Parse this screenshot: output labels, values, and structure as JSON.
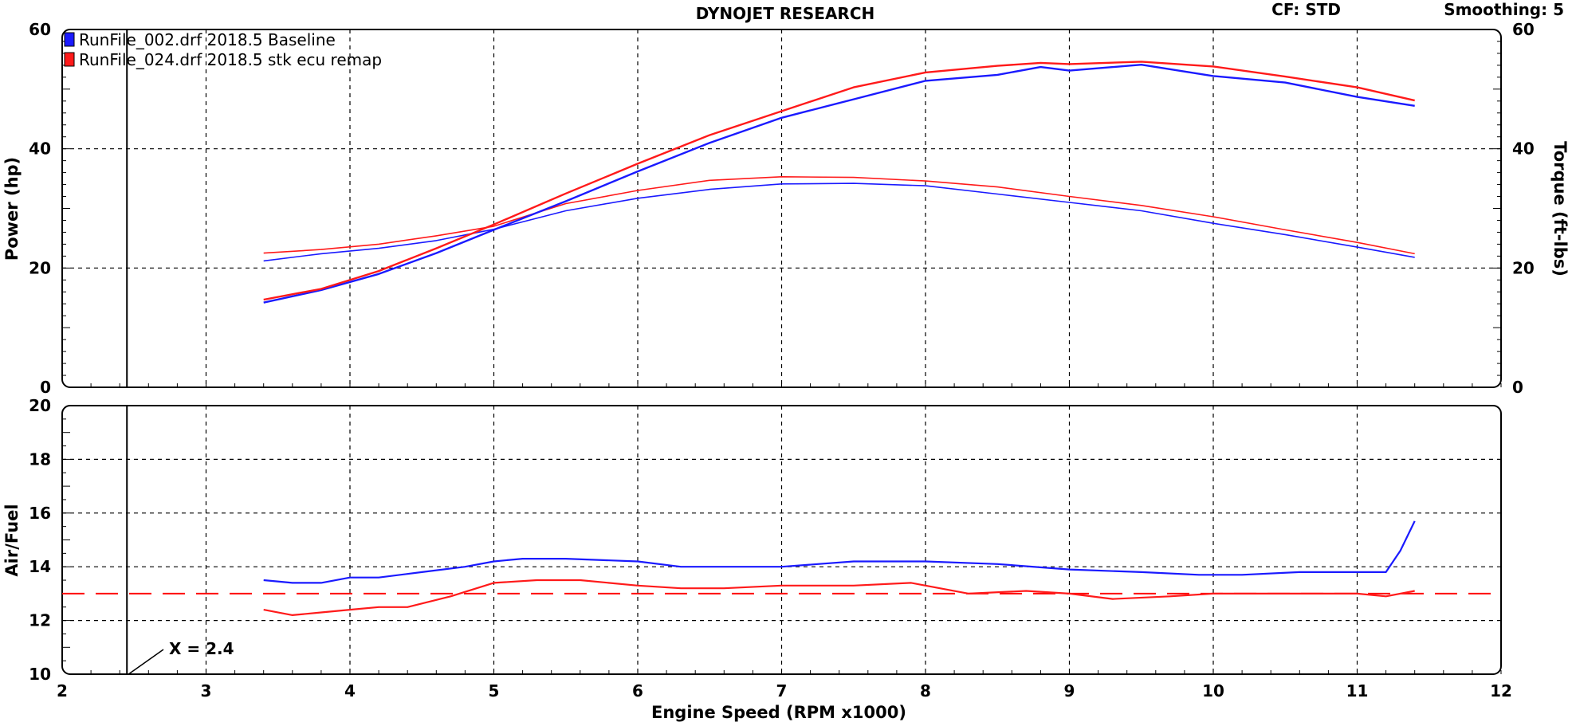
{
  "header": {
    "title": "DYNOJET RESEARCH",
    "cf_label": "CF: STD",
    "smoothing_label": "Smoothing: 5"
  },
  "colors": {
    "run1": "#1a1aff",
    "run2": "#ff1a1a",
    "grid": "#000000",
    "reference": "#ff0000"
  },
  "legend": [
    {
      "label": "RunFile_002.drf 2018.5 Baseline",
      "color": "#1a1aff"
    },
    {
      "label": "RunFile_024.drf 2018.5 stk ecu remap",
      "color": "#ff1a1a"
    }
  ],
  "cursor": {
    "x": 2.45,
    "label": "X = 2.4"
  },
  "chart_data": [
    {
      "type": "line",
      "title": "DYNOJET RESEARCH",
      "xlabel": "Engine Speed (RPM x1000)",
      "ylabel": "Power (hp)",
      "y2label": "Torque (ft-lbs)",
      "xlim": [
        2,
        12
      ],
      "ylim": [
        0,
        60
      ],
      "y2lim": [
        0,
        60
      ],
      "xticks": [
        "2",
        "3",
        "4",
        "5",
        "6",
        "7",
        "8",
        "9",
        "10",
        "11",
        "12"
      ],
      "yticks": [
        "0",
        "20",
        "40",
        "60"
      ],
      "y2ticks": [
        "0",
        "20",
        "40",
        "60"
      ],
      "series": [
        {
          "name": "RunFile_002.drf 2018.5 Baseline - Power",
          "color": "#1a1aff",
          "x": [
            3.4,
            3.8,
            4.2,
            4.6,
            5.0,
            5.5,
            6.0,
            6.5,
            7.0,
            7.5,
            8.0,
            8.5,
            8.8,
            9.0,
            9.5,
            10.0,
            10.5,
            11.0,
            11.4
          ],
          "y": [
            14.2,
            16.3,
            19.0,
            22.5,
            26.4,
            31.2,
            36.2,
            41.0,
            45.2,
            48.3,
            51.4,
            52.4,
            53.7,
            53.1,
            54.1,
            52.2,
            51.1,
            48.7,
            47.2
          ]
        },
        {
          "name": "RunFile_024.drf 2018.5 stk ecu remap - Power",
          "color": "#ff1a1a",
          "x": [
            3.4,
            3.8,
            4.2,
            4.6,
            5.0,
            5.5,
            6.0,
            6.5,
            7.0,
            7.5,
            8.0,
            8.5,
            8.8,
            9.0,
            9.5,
            10.0,
            10.5,
            11.0,
            11.4
          ],
          "y": [
            14.7,
            16.5,
            19.5,
            23.3,
            27.3,
            32.5,
            37.5,
            42.3,
            46.3,
            50.3,
            52.8,
            53.9,
            54.4,
            54.2,
            54.6,
            53.8,
            52.1,
            50.3,
            48.1
          ]
        },
        {
          "name": "RunFile_002.drf 2018.5 Baseline - Torque",
          "color": "#1a1aff",
          "axis": "right",
          "x": [
            3.4,
            3.8,
            4.2,
            4.6,
            5.0,
            5.5,
            6.0,
            6.5,
            7.0,
            7.5,
            8.0,
            8.5,
            9.0,
            9.5,
            10.0,
            10.5,
            11.0,
            11.4
          ],
          "y": [
            21.2,
            22.4,
            23.3,
            24.6,
            26.5,
            29.6,
            31.7,
            33.2,
            34.1,
            34.2,
            33.8,
            32.4,
            31.0,
            29.6,
            27.5,
            25.6,
            23.5,
            21.8
          ]
        },
        {
          "name": "RunFile_024.drf 2018.5 stk ecu remap - Torque",
          "color": "#ff1a1a",
          "axis": "right",
          "x": [
            3.4,
            3.8,
            4.2,
            4.6,
            5.0,
            5.5,
            6.0,
            6.5,
            7.0,
            7.5,
            8.0,
            8.5,
            9.0,
            9.5,
            10.0,
            10.5,
            11.0,
            11.4
          ],
          "y": [
            22.5,
            23.1,
            24.0,
            25.4,
            27.0,
            30.8,
            33.0,
            34.7,
            35.3,
            35.2,
            34.6,
            33.6,
            32.0,
            30.5,
            28.6,
            26.4,
            24.3,
            22.4
          ]
        }
      ]
    },
    {
      "type": "line",
      "ylabel": "Air/Fuel",
      "xlabel": "Engine Speed (RPM x1000)",
      "xlim": [
        2,
        12
      ],
      "ylim": [
        10,
        20
      ],
      "xticks": [
        "2",
        "3",
        "4",
        "5",
        "6",
        "7",
        "8",
        "9",
        "10",
        "11",
        "12"
      ],
      "yticks": [
        "10",
        "12",
        "14",
        "16",
        "18",
        "20"
      ],
      "reference_line": {
        "y": 13.0,
        "style": "dashed",
        "color": "#ff0000"
      },
      "series": [
        {
          "name": "RunFile_002.drf 2018.5 Baseline - Air/Fuel",
          "color": "#1a1aff",
          "x": [
            3.4,
            3.6,
            3.8,
            4.0,
            4.2,
            4.5,
            4.8,
            5.0,
            5.2,
            5.5,
            6.0,
            6.3,
            6.6,
            7.0,
            7.5,
            8.0,
            8.5,
            9.0,
            9.5,
            9.9,
            10.2,
            10.6,
            11.0,
            11.2,
            11.3,
            11.4
          ],
          "y": [
            13.5,
            13.4,
            13.4,
            13.6,
            13.6,
            13.8,
            14.0,
            14.2,
            14.3,
            14.3,
            14.2,
            14.0,
            14.0,
            14.0,
            14.2,
            14.2,
            14.1,
            13.9,
            13.8,
            13.7,
            13.7,
            13.8,
            13.8,
            13.8,
            14.6,
            15.7
          ]
        },
        {
          "name": "RunFile_024.drf 2018.5 stk ecu remap - Air/Fuel",
          "color": "#ff1a1a",
          "x": [
            3.4,
            3.6,
            3.8,
            4.0,
            4.2,
            4.4,
            4.7,
            5.0,
            5.3,
            5.6,
            6.0,
            6.3,
            6.6,
            7.0,
            7.5,
            7.9,
            8.0,
            8.3,
            8.7,
            9.0,
            9.3,
            9.7,
            10.0,
            10.5,
            11.0,
            11.2,
            11.4
          ],
          "y": [
            12.4,
            12.2,
            12.3,
            12.4,
            12.5,
            12.5,
            12.9,
            13.4,
            13.5,
            13.5,
            13.3,
            13.2,
            13.2,
            13.3,
            13.3,
            13.4,
            13.3,
            13.0,
            13.1,
            13.0,
            12.8,
            12.9,
            13.0,
            13.0,
            13.0,
            12.9,
            13.1
          ]
        }
      ]
    }
  ]
}
